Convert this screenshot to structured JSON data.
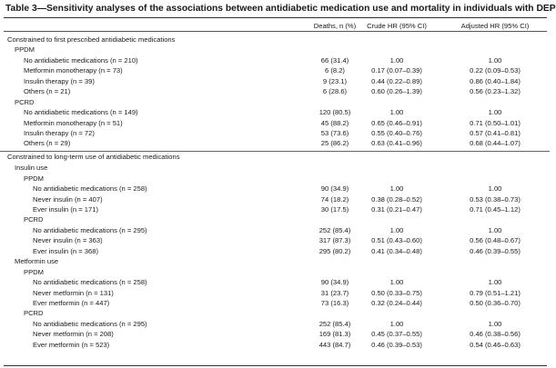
{
  "table": {
    "title": "Table 3—Sensitivity analyses of the associations between antidiabetic medication use and mortality in individuals with DEP",
    "headers": {
      "deaths": "Deaths, n (%)",
      "crude": "Crude HR (95% CI)",
      "adjusted": "Adjusted HR (95% CI)"
    },
    "rows": [
      {
        "label": "Constrained to first prescribed antidiabetic medications",
        "level": 0,
        "deaths": "",
        "crude": "",
        "adjusted": "",
        "sep": false
      },
      {
        "label": "PPDM",
        "level": 1,
        "deaths": "",
        "crude": "",
        "adjusted": "",
        "sep": false
      },
      {
        "label": "No antidiabetic medications (n = 210)",
        "level": 2,
        "deaths": "66 (31.4)",
        "crude": "1.00",
        "adjusted": "1.00",
        "sep": false
      },
      {
        "label": "Metformin monotherapy (n = 73)",
        "level": 2,
        "deaths": "6 (8.2)",
        "crude": "0.17 (0.07–0.39)",
        "adjusted": "0.22 (0.09–0.53)",
        "sep": false
      },
      {
        "label": "Insulin therapy (n = 39)",
        "level": 2,
        "deaths": "9 (23.1)",
        "crude": "0.44 (0.22–0.89)",
        "adjusted": "0.86 (0.40–1.84)",
        "sep": false
      },
      {
        "label": "Others (n = 21)",
        "level": 2,
        "deaths": "6 (28.6)",
        "crude": "0.60 (0.26–1.39)",
        "adjusted": "0.56 (0.23–1.32)",
        "sep": false
      },
      {
        "label": "PCRD",
        "level": 1,
        "deaths": "",
        "crude": "",
        "adjusted": "",
        "sep": false
      },
      {
        "label": "No antidiabetic medications (n = 149)",
        "level": 2,
        "deaths": "120 (80.5)",
        "crude": "1.00",
        "adjusted": "1.00",
        "sep": false
      },
      {
        "label": "Metformin monotherapy (n = 51)",
        "level": 2,
        "deaths": "45 (88.2)",
        "crude": "0.65 (0.46–0.91)",
        "adjusted": "0.71 (0.50–1.01)",
        "sep": false
      },
      {
        "label": "Insulin therapy (n = 72)",
        "level": 2,
        "deaths": "53 (73.6)",
        "crude": "0.55 (0.40–0.76)",
        "adjusted": "0.57 (0.41–0.81)",
        "sep": false
      },
      {
        "label": "Others (n = 29)",
        "level": 2,
        "deaths": "25 (86.2)",
        "crude": "0.63 (0.41–0.96)",
        "adjusted": "0.68 (0.44–1.07)",
        "sep": false
      },
      {
        "label": "Constrained to long-term use of antidiabetic medications",
        "level": 0,
        "deaths": "",
        "crude": "",
        "adjusted": "",
        "sep": true
      },
      {
        "label": "Insulin use",
        "level": 1,
        "deaths": "",
        "crude": "",
        "adjusted": "",
        "sep": false
      },
      {
        "label": "PPDM",
        "level": 2,
        "deaths": "",
        "crude": "",
        "adjusted": "",
        "sep": false
      },
      {
        "label": "No antidiabetic medications (n = 258)",
        "level": 3,
        "deaths": "90 (34.9)",
        "crude": "1.00",
        "adjusted": "1.00",
        "sep": false
      },
      {
        "label": "Never insulin (n = 407)",
        "level": 3,
        "deaths": "74 (18.2)",
        "crude": "0.38 (0.28–0.52)",
        "adjusted": "0.53 (0.38–0.73)",
        "sep": false
      },
      {
        "label": "Ever insulin (n = 171)",
        "level": 3,
        "deaths": "30 (17.5)",
        "crude": "0.31 (0.21–0.47)",
        "adjusted": "0.71 (0.45–1.12)",
        "sep": false
      },
      {
        "label": "PCRD",
        "level": 2,
        "deaths": "",
        "crude": "",
        "adjusted": "",
        "sep": false
      },
      {
        "label": "No antidiabetic medications (n = 295)",
        "level": 3,
        "deaths": "252 (85.4)",
        "crude": "1.00",
        "adjusted": "1.00",
        "sep": false
      },
      {
        "label": "Never insulin (n = 363)",
        "level": 3,
        "deaths": "317 (87.3)",
        "crude": "0.51 (0.43–0.60)",
        "adjusted": "0.56 (0.48–0.67)",
        "sep": false
      },
      {
        "label": "Ever insulin (n = 368)",
        "level": 3,
        "deaths": "295 (80.2)",
        "crude": "0.41 (0.34–0.48)",
        "adjusted": "0.46 (0.39–0.55)",
        "sep": false
      },
      {
        "label": "Metformin use",
        "level": 1,
        "deaths": "",
        "crude": "",
        "adjusted": "",
        "sep": false
      },
      {
        "label": "PPDM",
        "level": 2,
        "deaths": "",
        "crude": "",
        "adjusted": "",
        "sep": false
      },
      {
        "label": "No antidiabetic medications (n = 258)",
        "level": 3,
        "deaths": "90 (34.9)",
        "crude": "1.00",
        "adjusted": "1.00",
        "sep": false
      },
      {
        "label": "Never metformin (n = 131)",
        "level": 3,
        "deaths": "31 (23.7)",
        "crude": "0.50 (0.33–0.75)",
        "adjusted": "0.79 (0.51–1.21)",
        "sep": false
      },
      {
        "label": "Ever metformin (n = 447)",
        "level": 3,
        "deaths": "73 (16.3)",
        "crude": "0.32 (0.24–0.44)",
        "adjusted": "0.50 (0.36–0.70)",
        "sep": false
      },
      {
        "label": "PCRD",
        "level": 2,
        "deaths": "",
        "crude": "",
        "adjusted": "",
        "sep": false
      },
      {
        "label": "No antidiabetic medications (n = 295)",
        "level": 3,
        "deaths": "252 (85.4)",
        "crude": "1.00",
        "adjusted": "1.00",
        "sep": false
      },
      {
        "label": "Never metformin (n = 208)",
        "level": 3,
        "deaths": "169 (81.3)",
        "crude": "0.45 (0.37–0.55)",
        "adjusted": "0.46 (0.38–0.56)",
        "sep": false
      },
      {
        "label": "Ever metformin (n = 523)",
        "level": 3,
        "deaths": "443 (84.7)",
        "crude": "0.46 (0.39–0.53)",
        "adjusted": "0.54 (0.46–0.63)",
        "sep": false
      }
    ]
  }
}
